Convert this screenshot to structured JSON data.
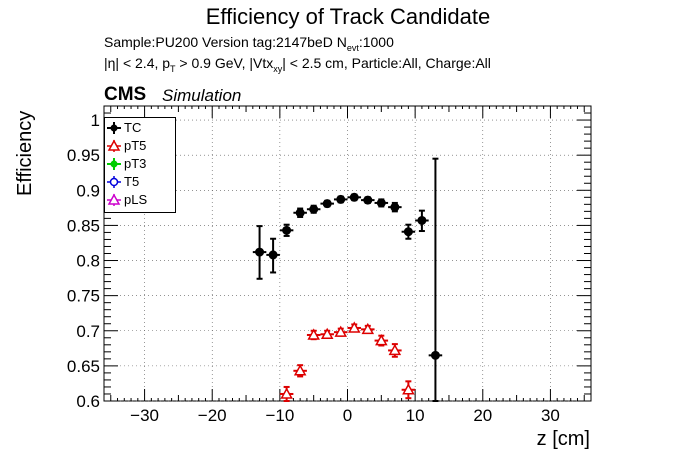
{
  "title": "Efficiency of Track Candidate",
  "subtitle_line1": "Sample:PU200   Version tag:2147beD  N",
  "subtitle_nevt_sub": "evt",
  "subtitle_nevt_value": ":1000",
  "subtitle_line2_parts": [
    "|η| < 2.4, p",
    "T",
    " > 0.9 GeV, |Vtx",
    "xy",
    "| < 2.5 cm, Particle:All, Charge:All"
  ],
  "cms_label": "CMS",
  "simulation_label": "Simulation",
  "chart_data": {
    "type": "scatter",
    "xlabel": "z [cm]",
    "ylabel": "Efficiency",
    "xlim": [
      -36,
      36
    ],
    "ylim": [
      0.6,
      1.02
    ],
    "x_ticks": [
      -30,
      -20,
      -10,
      0,
      10,
      20,
      30
    ],
    "y_ticks": [
      0.6,
      0.65,
      0.7,
      0.75,
      0.8,
      0.85,
      0.9,
      0.95,
      1
    ],
    "x_tick_labels": [
      "−30",
      "−20",
      "−10",
      "0",
      "10",
      "20",
      "30"
    ],
    "y_tick_labels": [
      "0.6",
      "0.65",
      "0.7",
      "0.75",
      "0.8",
      "0.85",
      "0.9",
      "0.95",
      "1"
    ],
    "grid": true,
    "legend_position": "top-left",
    "series": [
      {
        "name": "TC",
        "color": "#000000",
        "marker": "filled-circle",
        "x": [
          -13,
          -11,
          -9,
          -7,
          -5,
          -3,
          -1,
          1,
          3,
          5,
          7,
          9,
          11,
          13
        ],
        "y": [
          0.812,
          0.808,
          0.843,
          0.868,
          0.873,
          0.881,
          0.887,
          0.89,
          0.886,
          0.882,
          0.876,
          0.841,
          0.857,
          0.665
        ],
        "xerr": [
          1,
          1,
          1,
          1,
          1,
          1,
          1,
          1,
          1,
          1,
          1,
          1,
          1,
          1
        ],
        "yerr_low": [
          0.038,
          0.025,
          0.008,
          0.006,
          0.005,
          0.004,
          0.004,
          0.004,
          0.004,
          0.005,
          0.006,
          0.01,
          0.015,
          0.065
        ],
        "yerr_high": [
          0.037,
          0.023,
          0.008,
          0.006,
          0.005,
          0.004,
          0.004,
          0.004,
          0.004,
          0.005,
          0.006,
          0.01,
          0.014,
          0.28
        ]
      },
      {
        "name": "pT5",
        "color": "#dd0000",
        "marker": "open-triangle",
        "x": [
          -9,
          -7,
          -5,
          -3,
          -1,
          1,
          3,
          5,
          7,
          9
        ],
        "y": [
          0.61,
          0.643,
          0.694,
          0.695,
          0.698,
          0.704,
          0.702,
          0.686,
          0.672,
          0.616
        ],
        "xerr": [
          1,
          1,
          1,
          1,
          1,
          1,
          1,
          1,
          1,
          1
        ],
        "yerr_low": [
          0.01,
          0.008,
          0.006,
          0.005,
          0.005,
          0.005,
          0.005,
          0.007,
          0.009,
          0.012
        ],
        "yerr_high": [
          0.01,
          0.008,
          0.006,
          0.005,
          0.005,
          0.005,
          0.005,
          0.007,
          0.009,
          0.012
        ]
      },
      {
        "name": "pT3",
        "color": "#00cc00",
        "marker": "filled-circle",
        "x": [],
        "y": []
      },
      {
        "name": "T5",
        "color": "#0000dd",
        "marker": "open-circle",
        "x": [],
        "y": []
      },
      {
        "name": "pLS",
        "color": "#cc00cc",
        "marker": "open-triangle",
        "x": [],
        "y": []
      }
    ]
  }
}
